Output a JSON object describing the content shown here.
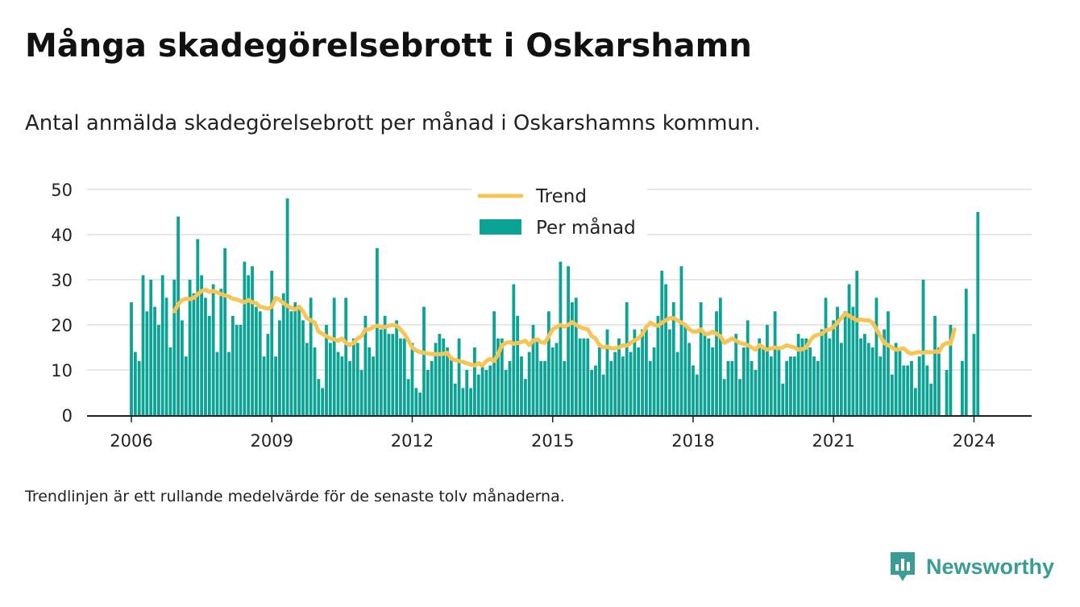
{
  "title": "Många skadegörelsebrott i Oskarshamn",
  "subtitle": "Antal anmälda skadegörelsebrott per månad i Oskarshamns kommun.",
  "footnote": "Trendlinjen är ett rullande medelvärde för de senaste tolv månaderna.",
  "brand": {
    "name": "Newsworthy"
  },
  "colors": {
    "bars": "#0aa395",
    "trend": "#f6c555",
    "grid": "#dddddd",
    "text": "#222222",
    "brand": "#3a9c97"
  },
  "chart_data": {
    "type": "bar",
    "start_month": "2006-01",
    "ylim": [
      0,
      50
    ],
    "yticks": [
      0,
      10,
      20,
      30,
      40,
      50
    ],
    "xticks": [
      "2006",
      "2009",
      "2012",
      "2015",
      "2018",
      "2021",
      "2024"
    ],
    "grid": true,
    "legend": {
      "placement": "top-center",
      "trend_label": "Trend",
      "bars_label": "Per månad"
    },
    "series": [
      {
        "name": "Per månad",
        "kind": "bar",
        "values": [
          25,
          14,
          12,
          31,
          23,
          30,
          24,
          20,
          31,
          26,
          15,
          30,
          44,
          21,
          13,
          30,
          27,
          39,
          31,
          26,
          22,
          29,
          14,
          28,
          37,
          14,
          22,
          20,
          20,
          34,
          31,
          33,
          24,
          23,
          13,
          18,
          32,
          13,
          21,
          27,
          48,
          23,
          25,
          24,
          21,
          16,
          26,
          15,
          8,
          6,
          20,
          16,
          26,
          14,
          13,
          26,
          12,
          17,
          16,
          10,
          22,
          15,
          13,
          37,
          19,
          22,
          18,
          18,
          21,
          17,
          17,
          8,
          16,
          6,
          5,
          24,
          10,
          12,
          16,
          18,
          17,
          15,
          13,
          7,
          17,
          6,
          10,
          6,
          15,
          9,
          11,
          10,
          11,
          23,
          17,
          17,
          10,
          12,
          29,
          22,
          13,
          8,
          14,
          20,
          17,
          12,
          12,
          23,
          15,
          16,
          34,
          12,
          33,
          25,
          26,
          17,
          17,
          17,
          10,
          11,
          15,
          9,
          19,
          12,
          14,
          17,
          13,
          25,
          14,
          19,
          15,
          19,
          19,
          12,
          15,
          22,
          32,
          29,
          19,
          25,
          14,
          33,
          20,
          16,
          11,
          9,
          25,
          18,
          17,
          15,
          23,
          26,
          8,
          12,
          12,
          18,
          8,
          15,
          21,
          12,
          10,
          17,
          15,
          20,
          13,
          23,
          15,
          7,
          12,
          13,
          13,
          18,
          17,
          17,
          15,
          13,
          12,
          19,
          26,
          17,
          21,
          24,
          16,
          23,
          29,
          24,
          32,
          17,
          18,
          16,
          15,
          26,
          13,
          19,
          23,
          9,
          16,
          15,
          11,
          11,
          12,
          6,
          13,
          30,
          11,
          7,
          22,
          15,
          0,
          10,
          20,
          0,
          0,
          12,
          28,
          0,
          18,
          45
        ]
      },
      {
        "name": "Trend",
        "kind": "line",
        "start_index": 11,
        "values": [
          23.0,
          24.5,
          25.5,
          25.8,
          25.7,
          26.0,
          26.8,
          27.5,
          27.8,
          27.3,
          27.5,
          27.2,
          26.8,
          26.5,
          26.3,
          25.8,
          25.6,
          25.3,
          25.0,
          25.5,
          25.0,
          24.8,
          24.0,
          23.8,
          23.6,
          24.0,
          26.0,
          25.5,
          24.8,
          24.2,
          23.8,
          23.4,
          24.0,
          23.0,
          21.5,
          21.0,
          20.5,
          18.5,
          18.0,
          17.5,
          17.0,
          16.8,
          16.5,
          17.0,
          16.0,
          15.5,
          16.0,
          17.0,
          17.5,
          19.0,
          19.0,
          19.5,
          19.8,
          19.6,
          19.5,
          19.8,
          20.0,
          19.8,
          19.0,
          18.0,
          16.5,
          15.0,
          14.3,
          14.0,
          13.8,
          13.7,
          13.5,
          13.5,
          13.5,
          13.6,
          13.8,
          12.5,
          12.2,
          12.0,
          11.8,
          11.5,
          11.2,
          11.0,
          11.5,
          11.0,
          12.0,
          12.5,
          12.0,
          13.5,
          15.5,
          16.0,
          16.2,
          15.8,
          16.0,
          16.2,
          16.5,
          15.5,
          16.5,
          16.8,
          16.2,
          16.0,
          17.5,
          19.0,
          19.5,
          20.0,
          19.6,
          20.0,
          20.6,
          20.0,
          19.5,
          19.2,
          19.0,
          17.5,
          17.0,
          15.5,
          15.0,
          15.2,
          14.8,
          14.8,
          15.0,
          15.5,
          15.4,
          16.0,
          16.6,
          17.0,
          18.0,
          19.5,
          20.5,
          20.0,
          19.8,
          20.5,
          21.0,
          21.5,
          21.5,
          21.0,
          20.5,
          20.0,
          19.0,
          18.5,
          18.5,
          19.0,
          18.0,
          18.0,
          18.5,
          18.0,
          17.5,
          16.0,
          16.5,
          17.0,
          16.5,
          16.0,
          15.8,
          15.5,
          15.0,
          14.5,
          15.5,
          15.0,
          14.5,
          14.8,
          15.0,
          14.8,
          15.0,
          15.5,
          15.2,
          15.0,
          14.5,
          14.6,
          15.0,
          16.5,
          17.5,
          17.8,
          18.0,
          18.8,
          19.0,
          19.5,
          20.5,
          21.5,
          22.5,
          22.0,
          21.5,
          21.0,
          21.2,
          21.0,
          21.0,
          20.5,
          19.0,
          17.5,
          16.0,
          15.5,
          15.0,
          14.5,
          14.6,
          14.8,
          14.0,
          13.6,
          13.8,
          14.0,
          13.8,
          14.0,
          13.9,
          14.1,
          14.0,
          15.5,
          16.0,
          15.8,
          19.0
        ]
      }
    ]
  }
}
